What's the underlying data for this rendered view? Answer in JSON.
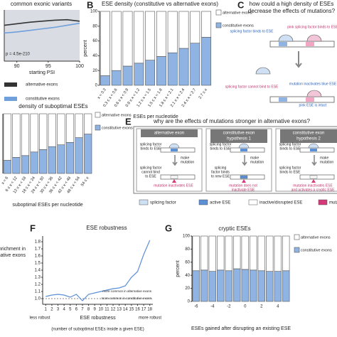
{
  "chart_data": [
    {
      "type": "line",
      "title": "common exonic variants",
      "annotation": "p = 4.5e-210",
      "xlabel": "starting PSI",
      "xlim": [
        88,
        100
      ],
      "xticks": [
        90,
        95,
        100
      ],
      "ylim": [
        0,
        1
      ],
      "x": [
        88,
        90,
        92,
        94,
        96,
        98,
        100
      ],
      "series": [
        {
          "name": "alternative exons",
          "color": "#333333",
          "values": [
            0.7,
            0.73,
            0.76,
            0.78,
            0.8,
            0.81,
            0.78
          ]
        },
        {
          "name": "constitutive exons",
          "color": "#6fa0dc",
          "values": [
            0.55,
            0.57,
            0.6,
            0.63,
            0.66,
            0.7,
            0.74
          ]
        }
      ]
    },
    {
      "type": "stacked_bar",
      "letter": "B",
      "title": "ESE density (constitutive vs alternative exons)",
      "xlabel": "ESEs per nucleotide",
      "ylabel": "percent",
      "ylim": [
        0,
        100
      ],
      "yticks": [
        0,
        20,
        40,
        60,
        80,
        100
      ],
      "categories": [
        "x < 0.3",
        "0.3 ≤ x < 0.6",
        "0.6 ≤ x < 0.9",
        "0.9 ≤ x < 1.2",
        "1.2 ≤ x < 1.5",
        "1.5 ≤ x < 1.8",
        "1.8 ≤ x < 2.1",
        "2.1 ≤ x < 2.4",
        "2.4 ≤ x < 2.7",
        "2.7 ≤ x"
      ],
      "series": [
        {
          "name": "alternative exons",
          "color": "#ffffff",
          "values": [
            87,
            80,
            74,
            70,
            66,
            61,
            56,
            50,
            43,
            35
          ]
        },
        {
          "name": "constitutive exons",
          "color": "#8fb4e3",
          "values": [
            13,
            20,
            26,
            30,
            34,
            39,
            44,
            50,
            57,
            65
          ]
        }
      ]
    },
    {
      "type": "stacked_bar",
      "title": "density of suboptimal ESEs",
      "xlabel": "suboptimal ESEs per nucleotide",
      "ylim": [
        0,
        100
      ],
      "categories": [
        "x < 6",
        "6 ≤ x < 12",
        "12 ≤ x < 18",
        "18 ≤ x < 24",
        "24 ≤ x < 30",
        "30 ≤ x < 36",
        "36 ≤ x < 42",
        "42 ≤ x < 48",
        "48 ≤ x < 54",
        "54 ≤ x"
      ],
      "series": [
        {
          "name": "alternative exons",
          "color": "#ffffff",
          "values": [
            78,
            73,
            70,
            64,
            60,
            55,
            52,
            48,
            40,
            34
          ]
        },
        {
          "name": "constitutive exons",
          "color": "#8fb4e3",
          "values": [
            22,
            27,
            30,
            36,
            40,
            45,
            48,
            52,
            60,
            66
          ]
        }
      ]
    },
    {
      "type": "line",
      "letter": "F",
      "title": "ESE robustness",
      "xlabel": "ESE robustness",
      "ylabel": [
        "enrichment in",
        "alternative exons"
      ],
      "note": "(number of suboptimal ESEs inside a given ESE)",
      "left_label": "less robust",
      "right_label": "more robust",
      "annotations": [
        "more common in alternative exons",
        "more common in constitutive exons"
      ],
      "xlim": [
        0.5,
        18.5
      ],
      "xticks": [
        1,
        2,
        3,
        4,
        5,
        6,
        7,
        8,
        9,
        10,
        11,
        12,
        13,
        14,
        15,
        16,
        17,
        18
      ],
      "ylim": [
        0.92,
        1.88
      ],
      "yticks": [
        {
          "value": 1,
          "label": "1.0"
        },
        1.1,
        1.2,
        1.3,
        1.4,
        1.5,
        1.6,
        1.7,
        1.8
      ],
      "x": [
        1,
        2,
        3,
        4,
        5,
        6,
        7,
        8,
        9,
        10,
        11,
        12,
        13,
        14,
        15,
        16,
        17,
        18
      ],
      "series": [
        {
          "name": "enrichment",
          "color": "#5b8fd6",
          "values": [
            1.03,
            1.05,
            1.06,
            1.05,
            1.02,
            1.06,
            0.97,
            1.06,
            1.08,
            1.1,
            1.12,
            1.14,
            1.15,
            1.18,
            1.3,
            1.38,
            1.62,
            1.82
          ]
        }
      ]
    },
    {
      "type": "stacked_bar",
      "letter": "G",
      "title": "cryptic ESEs",
      "xlabel": "ESEs gained after disrupting an existing ESE",
      "ylabel": "percent",
      "ylim": [
        0,
        100
      ],
      "yticks": [
        0,
        20,
        40,
        60,
        80,
        100
      ],
      "categories": [
        "-6",
        null,
        "-4",
        null,
        "-2",
        null,
        "0",
        null,
        "2",
        null,
        "4",
        null
      ],
      "series": [
        {
          "name": "alternative exons",
          "color": "#ffffff",
          "values": [
            53,
            52,
            54,
            52,
            53,
            50,
            51,
            52,
            53,
            54,
            54,
            53
          ]
        },
        {
          "name": "constitutive exons",
          "color": "#8fb4e3",
          "values": [
            47,
            48,
            46,
            48,
            47,
            50,
            49,
            48,
            47,
            46,
            46,
            47
          ]
        }
      ]
    }
  ],
  "panel_c": {
    "letter": "C",
    "title": [
      "how could a high density of ESEs",
      "decrease the effects of mutations?"
    ],
    "labels": [
      "splicing factor binds to ESE",
      "pink splicing factor binds to ESE",
      "mutation inactivates blue ESE",
      "splicing factor cannot bind to ESE",
      "pink ESE is intact"
    ]
  },
  "panel_e": {
    "letter": "E",
    "title": "why are the effects of mutations stronger in alternative exons?",
    "boxes": [
      {
        "header": [
          "alternative exon"
        ],
        "top": [
          "splicing factor",
          "binds to ESE"
        ],
        "mid": [
          "make",
          "mutation"
        ],
        "low": [
          "splicing factor",
          "cannot bind",
          "to ESE"
        ],
        "result": [
          "mutation inactivates ESE"
        ]
      },
      {
        "header": [
          "constitutive exon",
          "hypothesis 1"
        ],
        "top": [
          "splicing factor",
          "binds to ESE"
        ],
        "mid": [
          "make",
          "mutation"
        ],
        "low": [
          "splicing",
          "factor binds",
          "to new ESE"
        ],
        "result": [
          "mutation does not",
          "inactivate ESE"
        ]
      },
      {
        "header": [
          "constitutive exon",
          "hypothesis 2"
        ],
        "top": [
          "splicing factor",
          "binds to ESE"
        ],
        "mid": [
          "make",
          "mutation"
        ],
        "low": [
          "splicing factor",
          "binds to ESE"
        ],
        "result": [
          "mutation inactivates ESE",
          "and activates a cryptic ESE"
        ]
      }
    ],
    "legend": [
      "splicing factor",
      "active ESE",
      "inactive/disrupted ESE",
      "mutation"
    ]
  }
}
